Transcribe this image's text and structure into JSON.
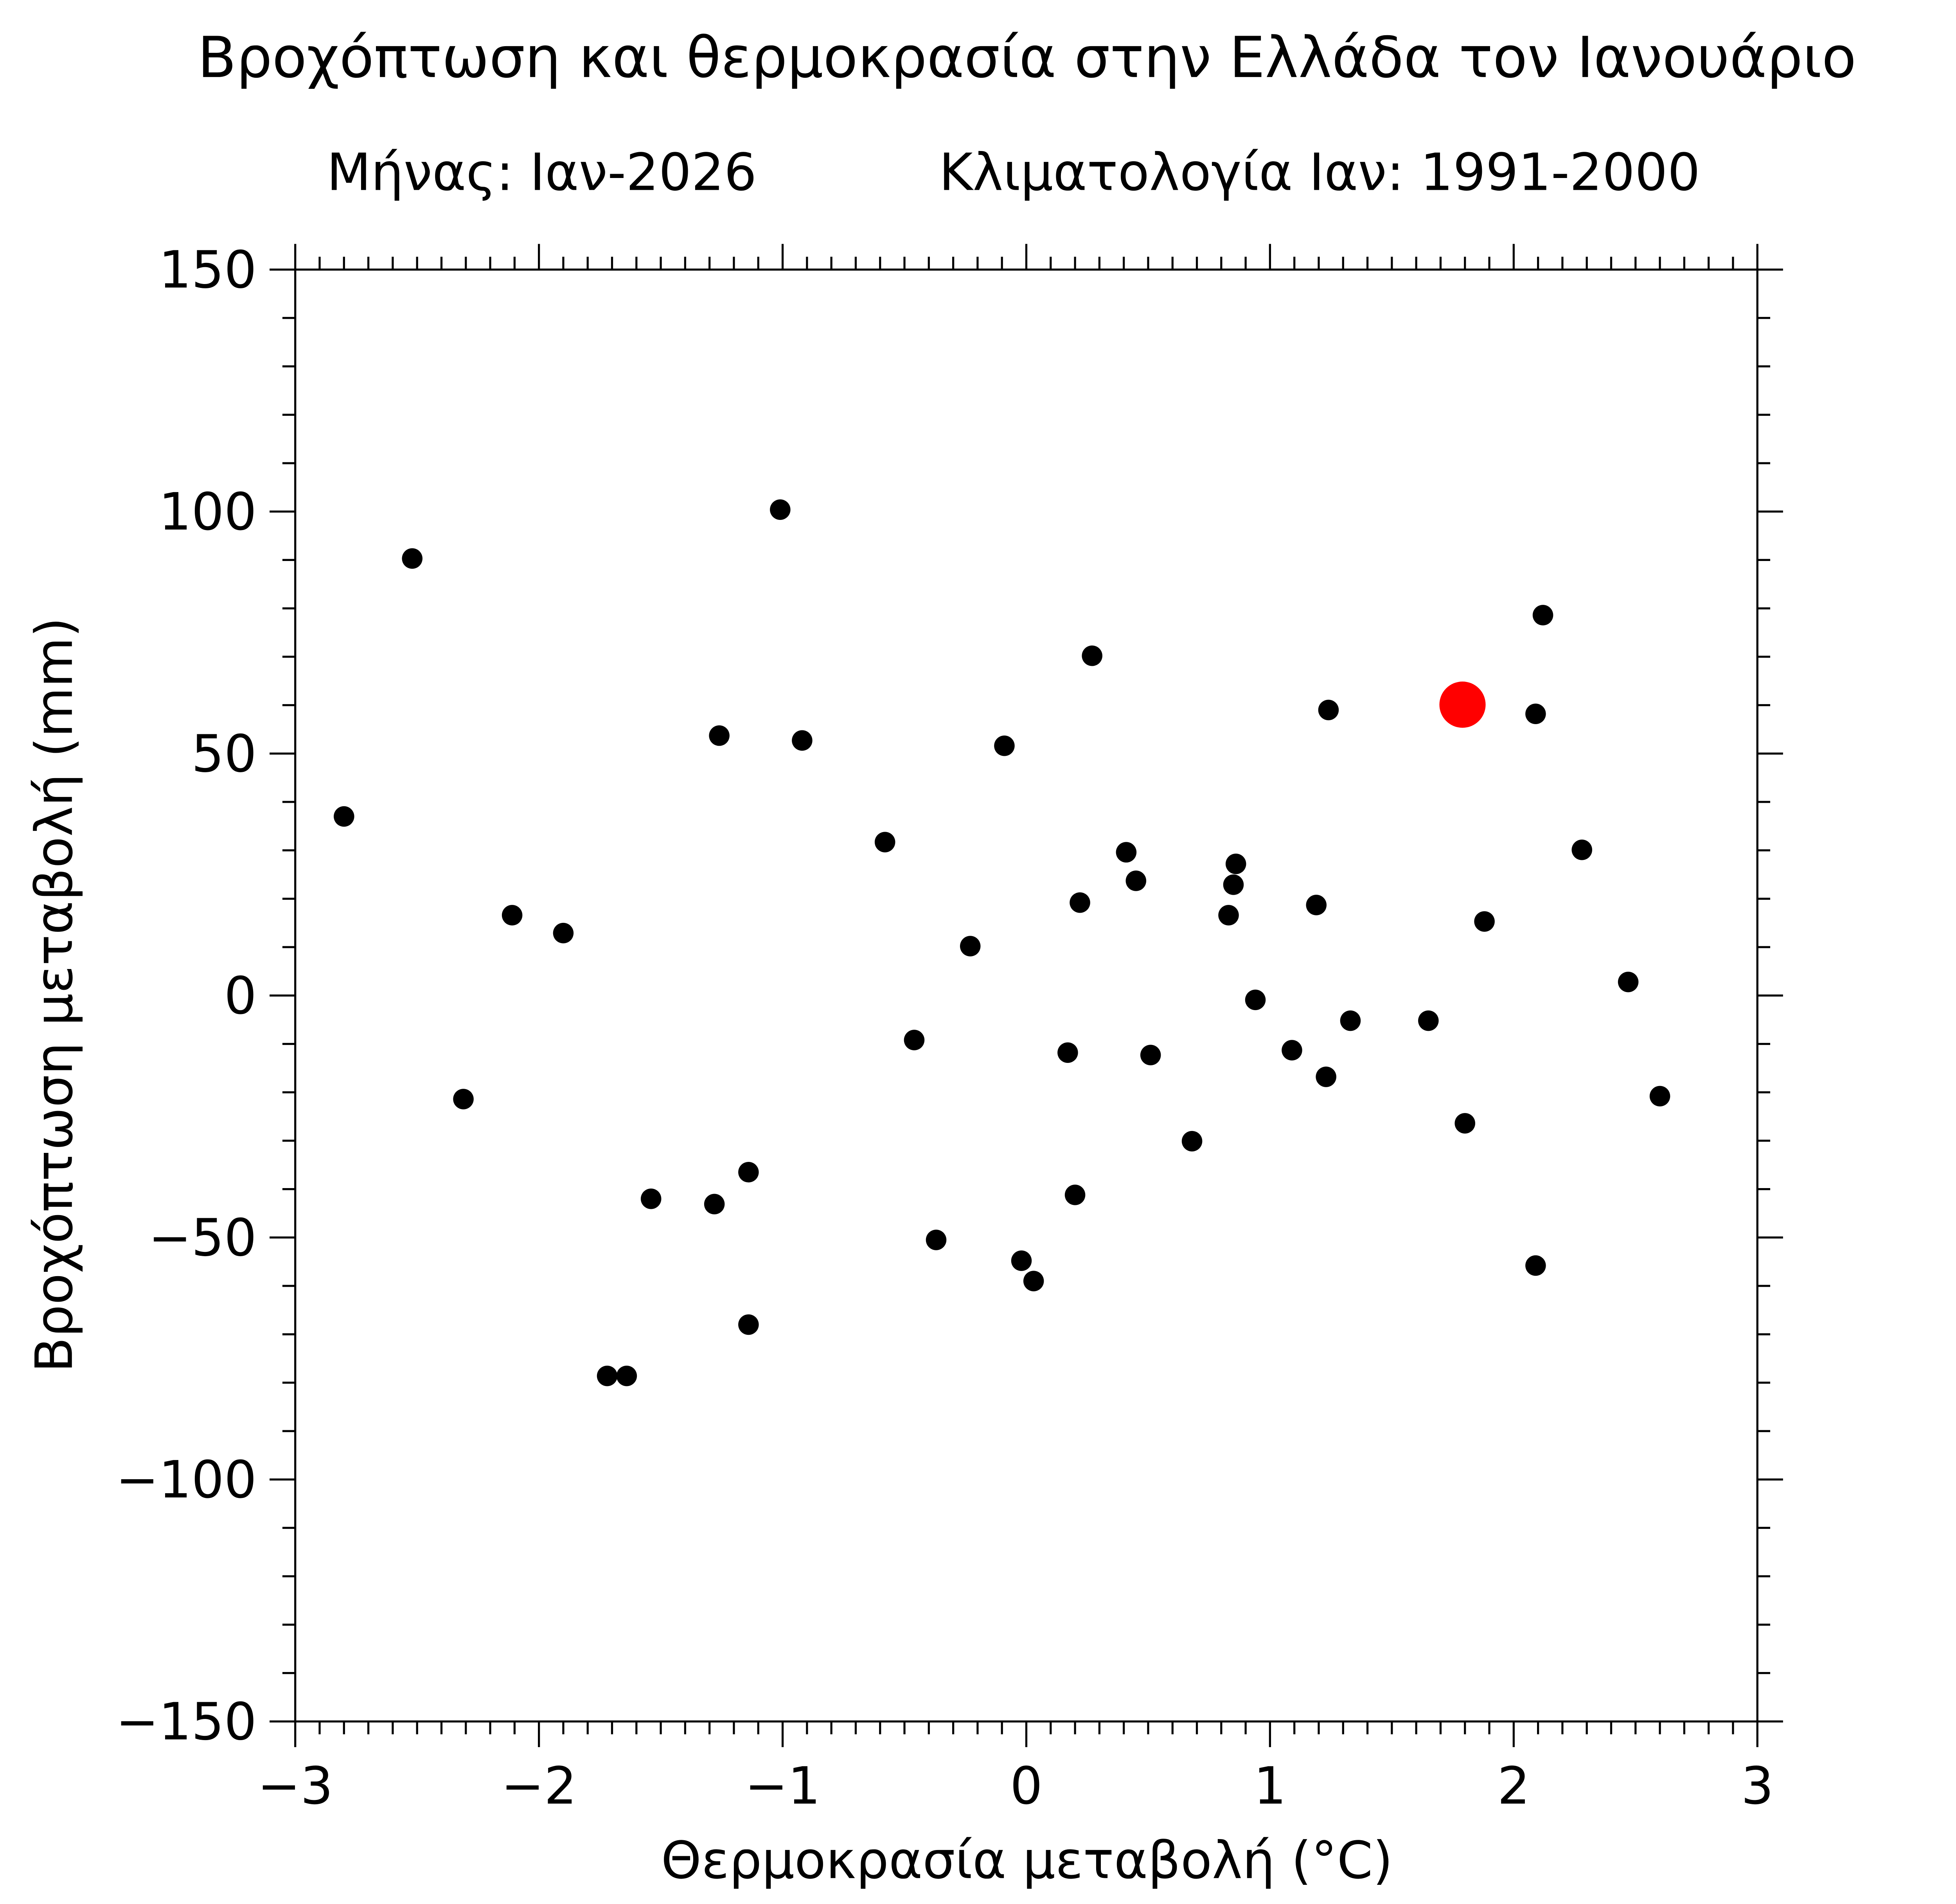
{
  "chart_data": {
    "type": "scatter",
    "title": "Βροχόπτωση και θερμοκρασία στην Ελλάδα τον Ιανουάριο",
    "subtitle": [
      "Μήνας: Ιαν-2026",
      "Κλιματολογία Ιαν: 1991-2000"
    ],
    "xlabel": "Θερμοκρασία μεταβολή (°C)",
    "ylabel": "Βροχόπτωση μεταβολή (mm)",
    "xlim": [
      -3,
      3
    ],
    "ylim": [
      -150,
      150
    ],
    "xticks": [
      {
        "value": -3,
        "label": "−3"
      },
      {
        "value": -2,
        "label": "−2"
      },
      {
        "value": -1,
        "label": "−1"
      },
      0,
      1,
      2,
      3
    ],
    "yticks": [
      {
        "value": -150,
        "label": "−150"
      },
      {
        "value": -100,
        "label": "−100"
      },
      {
        "value": -50,
        "label": "−50"
      },
      0,
      50,
      100,
      150
    ],
    "grid": false,
    "series": [
      {
        "color": "#000000",
        "size": "small",
        "x": [
          -2.8,
          -2.52,
          -1.01,
          -2.31,
          -2.11,
          -1.9,
          -1.54,
          -1.28,
          -1.26,
          -1.14,
          -1.14,
          -1.72,
          -1.64,
          -0.92,
          -0.58,
          -0.46,
          -0.37,
          -0.23,
          -0.09,
          -0.02,
          0.03,
          0.17,
          0.2,
          0.22,
          0.27,
          0.41,
          0.45,
          0.51,
          0.68,
          0.83,
          0.85,
          0.86,
          0.94,
          1.09,
          1.19,
          1.23,
          1.24,
          1.33,
          1.65,
          1.8,
          1.88,
          2.09,
          2.09,
          2.12,
          2.28,
          2.47,
          2.6
        ],
        "values": [
          37.0,
          90.3,
          100.4,
          -21.4,
          16.6,
          12.9,
          -42.0,
          -43.1,
          53.7,
          -36.5,
          -68.0,
          -78.6,
          -78.6,
          52.7,
          31.7,
          -9.2,
          -50.5,
          10.2,
          51.6,
          -54.8,
          -59.0,
          -11.8,
          -41.2,
          19.2,
          70.2,
          29.6,
          23.7,
          -12.3,
          -30.1,
          16.6,
          22.9,
          27.2,
          -0.9,
          -11.3,
          18.7,
          -16.8,
          59.0,
          -5.2,
          -5.2,
          -26.4,
          15.3,
          58.2,
          -55.8,
          78.6,
          30.1,
          2.8,
          -20.8
        ]
      },
      {
        "color": "#ff0000",
        "size": "large",
        "x": [
          1.79
        ],
        "values": [
          60.1
        ]
      }
    ]
  }
}
